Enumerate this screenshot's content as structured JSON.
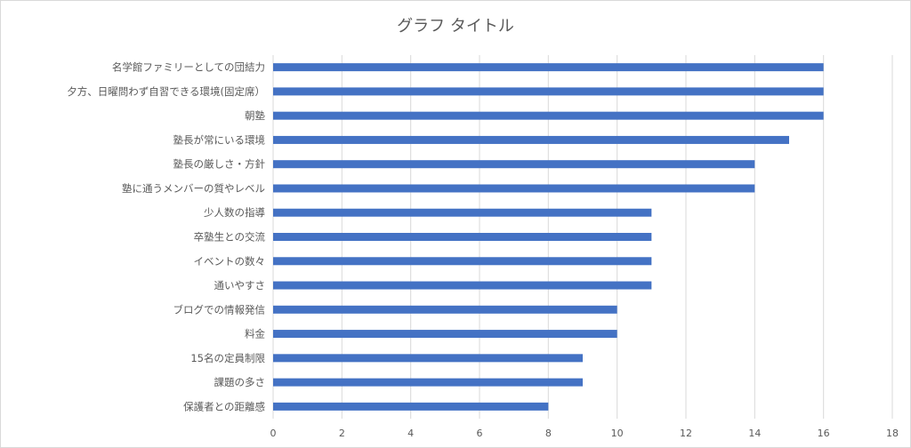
{
  "chart_data": {
    "type": "bar",
    "orientation": "horizontal",
    "title": "グラフ タイトル",
    "categories": [
      "名学館ファミリーとしての団結力",
      "夕方、日曜問わず自習できる環境(固定席）",
      "朝塾",
      "塾長が常にいる環境",
      "塾長の厳しさ・方針",
      "塾に通うメンバーの質やレベル",
      "少人数の指導",
      "卒塾生との交流",
      "イベントの数々",
      "通いやすさ",
      "ブログでの情報発信",
      "料金",
      "15名の定員制限",
      "課題の多さ",
      "保護者との距離感"
    ],
    "values": [
      16,
      16,
      16,
      15,
      14,
      14,
      11,
      11,
      11,
      11,
      10,
      10,
      9,
      9,
      8
    ],
    "xlim": [
      0,
      18
    ],
    "x_ticks": [
      0,
      2,
      4,
      6,
      8,
      10,
      12,
      14,
      16,
      18
    ],
    "grid": "vertical",
    "legend": "none",
    "bar_color": "#4472c4",
    "grid_color": "#d9d9d9",
    "text_color": "#595959"
  }
}
